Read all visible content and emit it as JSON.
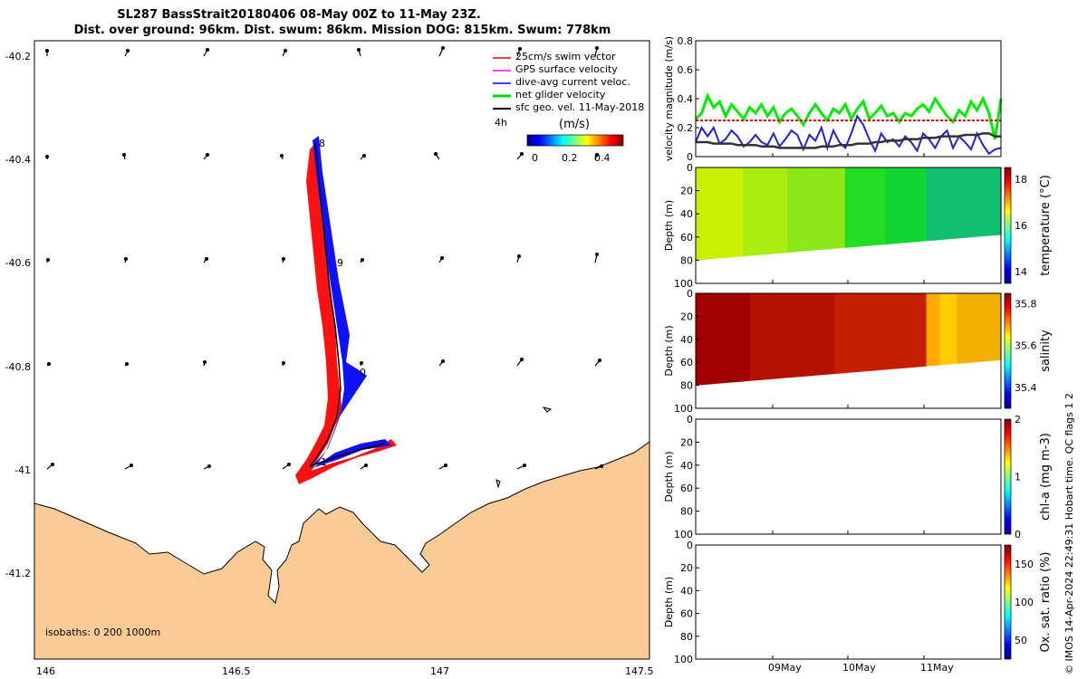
{
  "title_line1": "SL287 BassStrait20180406 08-May 00Z to 11-May 23Z.",
  "title_line2": "Dist. over ground: 96km. Dist. swum: 86km. Mission DOG: 815km. Swum: 778km",
  "credit": "© IMOS 14-Apr-2024 22:49:31 Hobart time. QC flags 1  2",
  "map": {
    "x_ticks": [
      "146",
      "146.5",
      "147",
      "147.5"
    ],
    "y_ticks": [
      "-40.2",
      "-40.4",
      "-40.6",
      "-40.8",
      "-41",
      "-41.2"
    ],
    "legend": [
      {
        "label": "25cm/s swim vector",
        "color": "#ff0000"
      },
      {
        "label": "GPS surface velocity",
        "color": "#ff00ff"
      },
      {
        "label": "dive-avg current veloc.",
        "color": "#0000ff"
      },
      {
        "label": "net glider velocity",
        "color": "#00dd00"
      },
      {
        "label": "sfc geo. vel. 11-May-2018",
        "color": "#000000"
      }
    ],
    "legend_extra": "4h",
    "colorbar_title": "(m/s)",
    "colorbar_ticks": [
      "0",
      "0.2",
      "0.4"
    ],
    "isobaths": "isobaths: 0   200  1000m",
    "day_labels": [
      "8",
      "9",
      "0",
      "1"
    ],
    "land_color": "#fbcb96"
  },
  "chart_data": [
    {
      "type": "line",
      "ylabel": "velocity magnitude (m/s)",
      "y_ticks": [
        "0",
        "0.2",
        "0.4",
        "0.6",
        "0.8"
      ],
      "ylim": [
        0,
        0.8
      ],
      "series": [
        {
          "color": "#00ee00",
          "values": [
            0.26,
            0.3,
            0.42,
            0.34,
            0.38,
            0.28,
            0.36,
            0.31,
            0.26,
            0.34,
            0.3,
            0.36,
            0.28,
            0.34,
            0.24,
            0.3,
            0.33,
            0.28,
            0.22,
            0.3,
            0.36,
            0.3,
            0.25,
            0.33,
            0.3,
            0.36,
            0.26,
            0.33,
            0.38,
            0.26,
            0.3,
            0.35,
            0.28,
            0.3,
            0.24,
            0.3,
            0.28,
            0.33,
            0.36,
            0.31,
            0.4,
            0.34,
            0.28,
            0.24,
            0.32,
            0.28,
            0.38,
            0.32,
            0.4,
            0.3,
            0.12,
            0.4
          ]
        },
        {
          "color": "#ff0000",
          "values": [
            0.25,
            0.25,
            0.25,
            0.25,
            0.25,
            0.25,
            0.25,
            0.25,
            0.25,
            0.25,
            0.25,
            0.25,
            0.25,
            0.25,
            0.25,
            0.25,
            0.25,
            0.25,
            0.25,
            0.25,
            0.25,
            0.25,
            0.25,
            0.25,
            0.25,
            0.25,
            0.25,
            0.25,
            0.25,
            0.25,
            0.25,
            0.25,
            0.25,
            0.25,
            0.25,
            0.25,
            0.25,
            0.25,
            0.25,
            0.25,
            0.25,
            0.25,
            0.25,
            0.25,
            0.25,
            0.25,
            0.25,
            0.25,
            0.25,
            0.25,
            0.25,
            0.25
          ]
        },
        {
          "color": "#2222dd",
          "values": [
            0.1,
            0.2,
            0.14,
            0.2,
            0.09,
            0.12,
            0.18,
            0.14,
            0.07,
            0.1,
            0.15,
            0.1,
            0.08,
            0.16,
            0.07,
            0.12,
            0.18,
            0.15,
            0.05,
            0.15,
            0.11,
            0.2,
            0.06,
            0.18,
            0.1,
            0.06,
            0.16,
            0.28,
            0.22,
            0.12,
            0.04,
            0.16,
            0.1,
            0.12,
            0.07,
            0.14,
            0.1,
            0.04,
            0.16,
            0.12,
            0.06,
            0.14,
            0.18,
            0.06,
            0.14,
            0.1,
            0.05,
            0.16,
            0.08,
            0.02,
            0.05,
            0.06
          ]
        },
        {
          "color": "#333333",
          "values": [
            0.1,
            0.1,
            0.1,
            0.09,
            0.09,
            0.09,
            0.09,
            0.08,
            0.08,
            0.08,
            0.08,
            0.07,
            0.07,
            0.07,
            0.06,
            0.06,
            0.06,
            0.06,
            0.06,
            0.06,
            0.06,
            0.07,
            0.07,
            0.07,
            0.08,
            0.08,
            0.08,
            0.09,
            0.09,
            0.09,
            0.1,
            0.1,
            0.11,
            0.11,
            0.11,
            0.12,
            0.12,
            0.12,
            0.13,
            0.13,
            0.13,
            0.14,
            0.14,
            0.14,
            0.14,
            0.15,
            0.15,
            0.15,
            0.16,
            0.16,
            0.14,
            0.14
          ]
        }
      ]
    },
    {
      "type": "heatmap",
      "ylabel": "Depth (m)",
      "y_ticks": [
        "0",
        "20",
        "40",
        "60",
        "80",
        "100"
      ],
      "cbar_label": "temperature (°C)",
      "cbar_ticks": [
        "14",
        "16",
        "18"
      ],
      "clim": [
        13.5,
        18.5
      ]
    },
    {
      "type": "heatmap",
      "ylabel": "Depth (m)",
      "y_ticks": [
        "0",
        "20",
        "40",
        "60",
        "80",
        "100"
      ],
      "cbar_label": "salinity",
      "cbar_ticks": [
        "35.4",
        "35.6",
        "35.8"
      ],
      "clim": [
        35.3,
        35.85
      ]
    },
    {
      "type": "heatmap",
      "ylabel": "Depth (m)",
      "y_ticks": [
        "0",
        "20",
        "40",
        "60",
        "80",
        "100"
      ],
      "cbar_label": "chl-a (mg m-3)",
      "cbar_ticks": [
        "0",
        "1",
        "2"
      ],
      "clim": [
        0,
        2
      ]
    },
    {
      "type": "heatmap",
      "ylabel": "Depth (m)",
      "y_ticks": [
        "0",
        "20",
        "40",
        "60",
        "80",
        "100"
      ],
      "cbar_label": "Ox. sat. ratio (%)",
      "cbar_ticks": [
        "50",
        "100",
        "150"
      ],
      "clim": [
        25,
        175
      ]
    }
  ],
  "time_ticks": [
    "09May",
    "10May",
    "11May"
  ]
}
